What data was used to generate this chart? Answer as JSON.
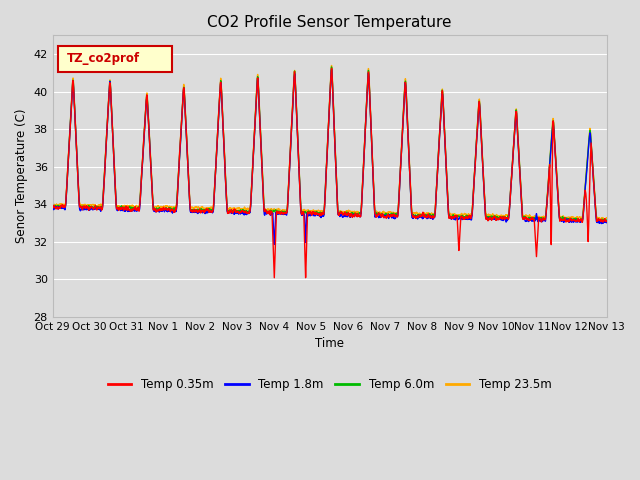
{
  "title": "CO2 Profile Sensor Temperature",
  "ylabel": "Senor Temperature (C)",
  "xlabel": "Time",
  "ylim": [
    28,
    43
  ],
  "yticks": [
    28,
    30,
    32,
    34,
    36,
    38,
    40,
    42
  ],
  "legend_label": "TZ_co2prof",
  "series_labels": [
    "Temp 0.35m",
    "Temp 1.8m",
    "Temp 6.0m",
    "Temp 23.5m"
  ],
  "series_colors": [
    "#ff0000",
    "#0000ff",
    "#00bb00",
    "#ffaa00"
  ],
  "bg_color": "#dcdcdc",
  "grid_color": "#ffffff",
  "x_tick_days": [
    0,
    1,
    2,
    3,
    4,
    5,
    6,
    7,
    8,
    9,
    10,
    11,
    12,
    13,
    14,
    15
  ],
  "x_tick_labels": [
    "Oct 29",
    "Oct 30",
    "Oct 31",
    "Nov 1",
    "Nov 2",
    "Nov 3",
    "Nov 4",
    "Nov 5",
    "Nov 6",
    "Nov 7",
    "Nov 8",
    "Nov 9",
    "Nov 10",
    "Nov 11",
    "Nov 12",
    "Nov 13"
  ]
}
